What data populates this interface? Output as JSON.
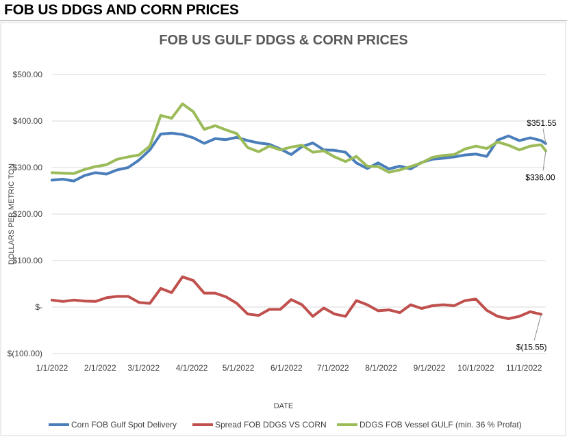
{
  "page": {
    "heading": "FOB US DDGS AND CORN PRICES"
  },
  "chart_data": {
    "type": "line",
    "title": "FOB US GULF DDGS & CORN PRICES",
    "xlabel": "DATE",
    "ylabel": "DOLLARS PER METRIC TON",
    "ylim": [
      -100,
      500
    ],
    "y_ticks": [
      "$(100.00)",
      "$-",
      "$100.00",
      "$200.00",
      "$300.00",
      "$400.00",
      "$500.00"
    ],
    "x_ticks": [
      "1/1/2022",
      "2/1/2022",
      "3/1/2022",
      "4/1/2022",
      "5/1/2022",
      "6/1/2022",
      "7/1/2022",
      "8/1/2022",
      "9/1/2022",
      "10/1/2022",
      "11/1/2022"
    ],
    "x_range": [
      "1/1/2022",
      "11/15/2022"
    ],
    "grid": "horizontal",
    "legend_position": "bottom",
    "series": [
      {
        "name": "Corn FOB Gulf Spot Delivery",
        "color": "#4a7ebb",
        "end_label": "$351.55",
        "points": [
          [
            "1/1/2022",
            273
          ],
          [
            "1/8/2022",
            275
          ],
          [
            "1/15/2022",
            271
          ],
          [
            "1/22/2022",
            283
          ],
          [
            "1/29/2022",
            289
          ],
          [
            "2/5/2022",
            286
          ],
          [
            "2/12/2022",
            295
          ],
          [
            "2/19/2022",
            300
          ],
          [
            "2/26/2022",
            316
          ],
          [
            "3/5/2022",
            338
          ],
          [
            "3/12/2022",
            372
          ],
          [
            "3/19/2022",
            374
          ],
          [
            "3/26/2022",
            371
          ],
          [
            "4/2/2022",
            364
          ],
          [
            "4/9/2022",
            352
          ],
          [
            "4/16/2022",
            362
          ],
          [
            "4/23/2022",
            360
          ],
          [
            "4/30/2022",
            365
          ],
          [
            "5/7/2022",
            358
          ],
          [
            "5/14/2022",
            353
          ],
          [
            "5/21/2022",
            350
          ],
          [
            "5/28/2022",
            340
          ],
          [
            "6/4/2022",
            328
          ],
          [
            "6/11/2022",
            345
          ],
          [
            "6/18/2022",
            353
          ],
          [
            "6/25/2022",
            338
          ],
          [
            "7/2/2022",
            337
          ],
          [
            "7/9/2022",
            333
          ],
          [
            "7/16/2022",
            310
          ],
          [
            "7/23/2022",
            298
          ],
          [
            "7/30/2022",
            310
          ],
          [
            "8/6/2022",
            297
          ],
          [
            "8/13/2022",
            303
          ],
          [
            "8/20/2022",
            297
          ],
          [
            "8/27/2022",
            311
          ],
          [
            "9/3/2022",
            318
          ],
          [
            "9/10/2022",
            320
          ],
          [
            "9/17/2022",
            323
          ],
          [
            "9/24/2022",
            327
          ],
          [
            "10/1/2022",
            329
          ],
          [
            "10/8/2022",
            324
          ],
          [
            "10/15/2022",
            359
          ],
          [
            "10/22/2022",
            368
          ],
          [
            "10/29/2022",
            358
          ],
          [
            "11/5/2022",
            364
          ],
          [
            "11/12/2022",
            358
          ],
          [
            "11/15/2022",
            351.55
          ]
        ]
      },
      {
        "name": "Spread FOB DDGS VS CORN",
        "color": "#c0504d",
        "end_label": "$(15.55)",
        "points": [
          [
            "1/1/2022",
            15
          ],
          [
            "1/8/2022",
            12
          ],
          [
            "1/15/2022",
            15
          ],
          [
            "1/22/2022",
            13
          ],
          [
            "1/29/2022",
            12
          ],
          [
            "2/5/2022",
            20
          ],
          [
            "2/12/2022",
            23
          ],
          [
            "2/19/2022",
            23
          ],
          [
            "2/26/2022",
            10
          ],
          [
            "3/5/2022",
            8
          ],
          [
            "3/12/2022",
            40
          ],
          [
            "3/19/2022",
            31
          ],
          [
            "3/26/2022",
            65
          ],
          [
            "4/2/2022",
            57
          ],
          [
            "4/9/2022",
            30
          ],
          [
            "4/16/2022",
            30
          ],
          [
            "4/23/2022",
            22
          ],
          [
            "4/30/2022",
            8
          ],
          [
            "5/7/2022",
            -15
          ],
          [
            "5/14/2022",
            -18
          ],
          [
            "5/21/2022",
            -5
          ],
          [
            "5/28/2022",
            -5
          ],
          [
            "6/4/2022",
            16
          ],
          [
            "6/11/2022",
            5
          ],
          [
            "6/18/2022",
            -20
          ],
          [
            "6/25/2022",
            -2
          ],
          [
            "7/2/2022",
            -15
          ],
          [
            "7/9/2022",
            -20
          ],
          [
            "7/16/2022",
            14
          ],
          [
            "7/23/2022",
            5
          ],
          [
            "7/30/2022",
            -8
          ],
          [
            "8/6/2022",
            -6
          ],
          [
            "8/13/2022",
            -12
          ],
          [
            "8/20/2022",
            5
          ],
          [
            "8/27/2022",
            -3
          ],
          [
            "9/3/2022",
            3
          ],
          [
            "9/10/2022",
            5
          ],
          [
            "9/17/2022",
            3
          ],
          [
            "9/24/2022",
            14
          ],
          [
            "10/1/2022",
            17
          ],
          [
            "10/8/2022",
            -7
          ],
          [
            "10/15/2022",
            -20
          ],
          [
            "10/22/2022",
            -25
          ],
          [
            "10/29/2022",
            -20
          ],
          [
            "11/5/2022",
            -10
          ],
          [
            "11/12/2022",
            -15.55
          ]
        ]
      },
      {
        "name": "DDGS FOB Vessel GULF  (min. 36 % Profat)",
        "color": "#9bbb59",
        "end_label": "$336.00",
        "points": [
          [
            "1/1/2022",
            289
          ],
          [
            "1/8/2022",
            288
          ],
          [
            "1/15/2022",
            287
          ],
          [
            "1/22/2022",
            296
          ],
          [
            "1/29/2022",
            302
          ],
          [
            "2/5/2022",
            306
          ],
          [
            "2/12/2022",
            318
          ],
          [
            "2/19/2022",
            323
          ],
          [
            "2/26/2022",
            327
          ],
          [
            "3/5/2022",
            346
          ],
          [
            "3/12/2022",
            412
          ],
          [
            "3/19/2022",
            406
          ],
          [
            "3/26/2022",
            437
          ],
          [
            "4/2/2022",
            420
          ],
          [
            "4/9/2022",
            382
          ],
          [
            "4/16/2022",
            390
          ],
          [
            "4/23/2022",
            381
          ],
          [
            "4/30/2022",
            373
          ],
          [
            "5/7/2022",
            343
          ],
          [
            "5/14/2022",
            334
          ],
          [
            "5/21/2022",
            346
          ],
          [
            "5/28/2022",
            338
          ],
          [
            "6/4/2022",
            344
          ],
          [
            "6/11/2022",
            348
          ],
          [
            "6/18/2022",
            333
          ],
          [
            "6/25/2022",
            336
          ],
          [
            "7/2/2022",
            323
          ],
          [
            "7/9/2022",
            313
          ],
          [
            "7/16/2022",
            324
          ],
          [
            "7/23/2022",
            303
          ],
          [
            "7/30/2022",
            302
          ],
          [
            "8/6/2022",
            290
          ],
          [
            "8/13/2022",
            295
          ],
          [
            "8/20/2022",
            302
          ],
          [
            "8/27/2022",
            310
          ],
          [
            "9/3/2022",
            322
          ],
          [
            "9/10/2022",
            326
          ],
          [
            "9/17/2022",
            328
          ],
          [
            "9/24/2022",
            340
          ],
          [
            "10/1/2022",
            346
          ],
          [
            "10/8/2022",
            341
          ],
          [
            "10/15/2022",
            355
          ],
          [
            "10/22/2022",
            348
          ],
          [
            "10/29/2022",
            338
          ],
          [
            "11/5/2022",
            346
          ],
          [
            "11/12/2022",
            349
          ],
          [
            "11/15/2022",
            336
          ]
        ]
      }
    ]
  }
}
